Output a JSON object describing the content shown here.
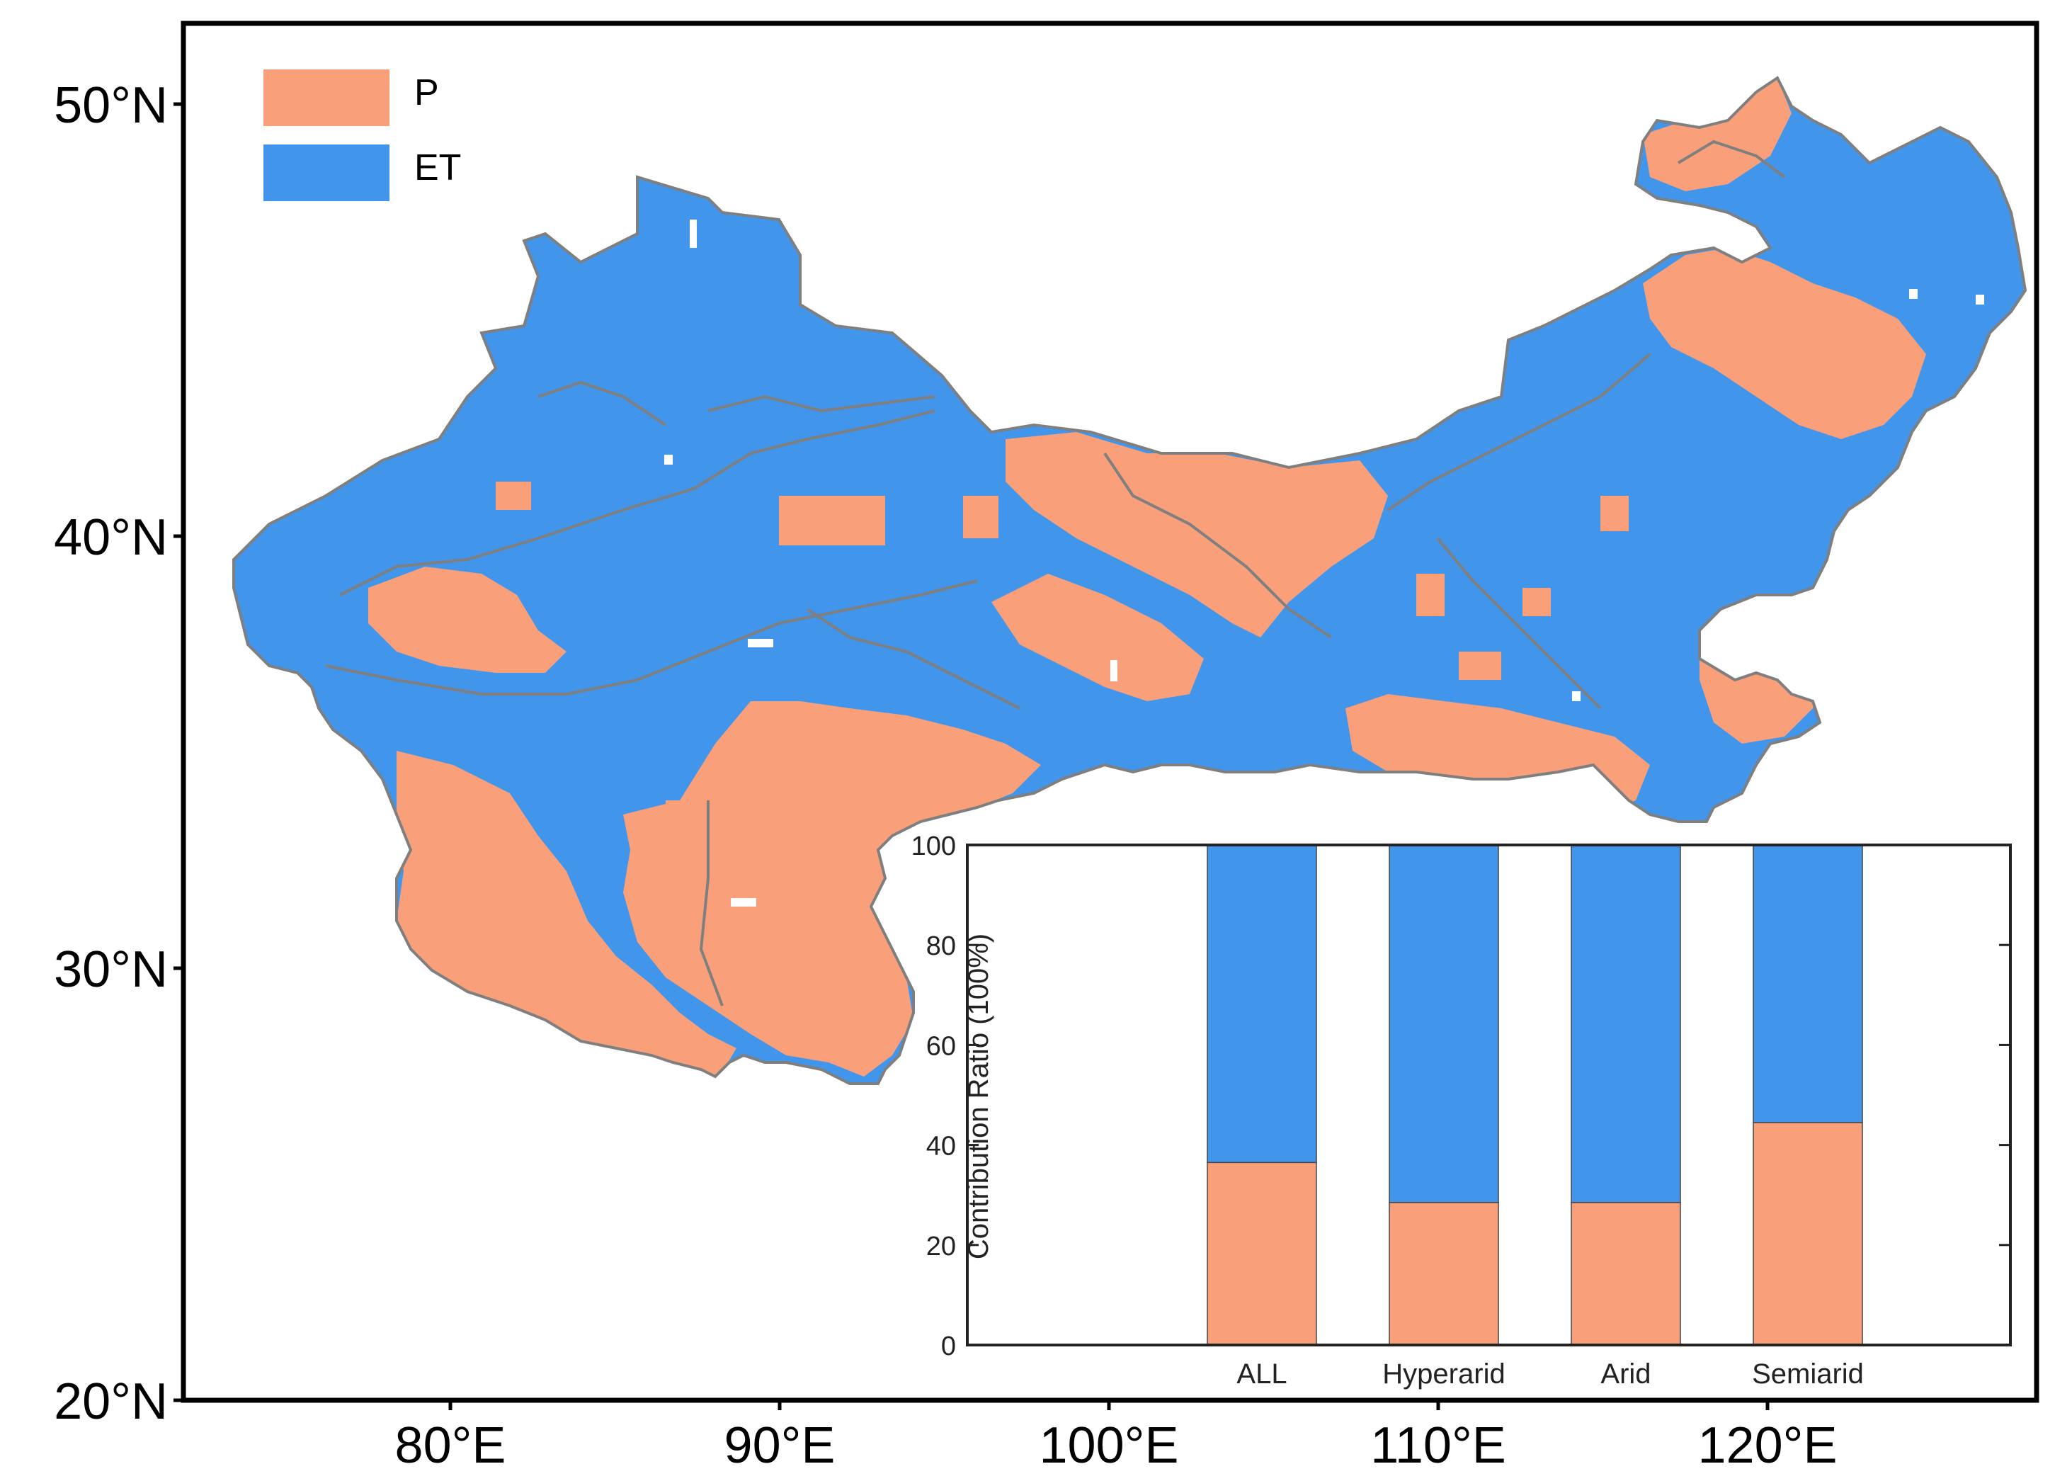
{
  "map": {
    "lat_ticks": [
      "50°N",
      "40°N",
      "30°N",
      "20°N"
    ],
    "lon_ticks": [
      "80°E",
      "90°E",
      "100°E",
      "110°E",
      "120°E"
    ],
    "lat_values": [
      50,
      40,
      30,
      20
    ],
    "lon_values": [
      80,
      90,
      100,
      110,
      120
    ],
    "legend": [
      {
        "label": "P",
        "color": "#F9A07A"
      },
      {
        "label": "ET",
        "color": "#4195EA"
      }
    ]
  },
  "chart_data": {
    "type": "bar",
    "stacked": true,
    "categories": [
      "ALL",
      "Hyperarid",
      "Arid",
      "Semiarid"
    ],
    "series": [
      {
        "name": "P",
        "values": [
          36.5,
          28.5,
          28.5,
          44.5
        ],
        "color": "#F9A07A"
      },
      {
        "name": "ET",
        "values": [
          63.5,
          71.5,
          71.5,
          55.5
        ],
        "color": "#4195EA"
      }
    ],
    "ylabel": "Contribution Ratio (100%)",
    "ylim": [
      0,
      100
    ],
    "yticks": [
      "0",
      "20",
      "40",
      "60",
      "80",
      "100"
    ],
    "ytick_values": [
      0,
      20,
      40,
      60,
      80,
      100
    ]
  }
}
